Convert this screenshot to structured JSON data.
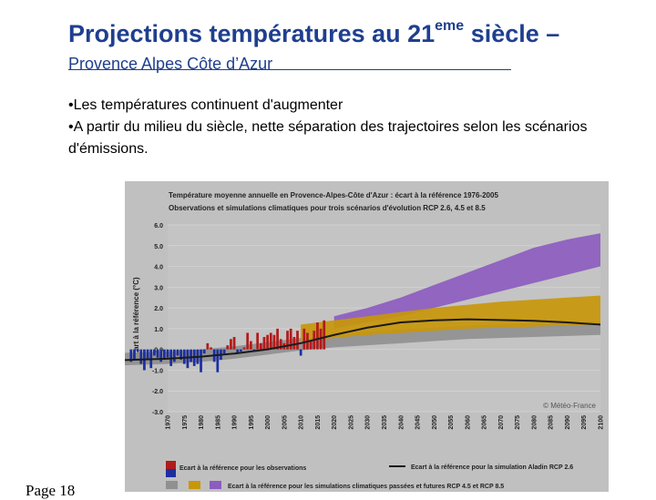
{
  "slide": {
    "title_main": "Projections températures au 21",
    "title_sup": "eme",
    "title_tail": " siècle –",
    "subtitle": "Provence Alpes Côte d’Azur",
    "bullets": [
      "•Les températures continuent d'augmenter",
      "•A partir du milieu du siècle, nette séparation des trajectoires selon les scénarios d'émissions."
    ],
    "page_label": "Page 18"
  },
  "chart_data": {
    "type": "bar+area+line",
    "title": "Température moyenne annuelle en Provence-Alpes-Côte d'Azur : écart à la référence 1976-2005",
    "subtitle": "Observations et simulations climatiques pour trois scénarios d'évolution RCP 2.6, 4.5 et 8.5",
    "ylabel": "Écart à la référence (°C)",
    "ylim": [
      -3,
      6
    ],
    "xlim": [
      1970,
      2100
    ],
    "yticks": [
      "6.0",
      "5.0",
      "4.0",
      "3.0",
      "2.0",
      "1.0",
      "0.0",
      "-1.0",
      "-2.0",
      "-3.0"
    ],
    "xticks": [
      "1970",
      "1975",
      "1980",
      "1985",
      "1990",
      "1995",
      "2000",
      "2005",
      "2010",
      "2015",
      "2020",
      "2025",
      "2030",
      "2035",
      "2040",
      "2045",
      "2050",
      "2055",
      "2060",
      "2065",
      "2070",
      "2075",
      "2080",
      "2085",
      "2090",
      "2095",
      "2100"
    ],
    "credit": "© Météo-France",
    "observations": {
      "years": [
        1959,
        1960,
        1961,
        1962,
        1963,
        1964,
        1965,
        1966,
        1967,
        1968,
        1969,
        1970,
        1971,
        1972,
        1973,
        1974,
        1975,
        1976,
        1977,
        1978,
        1979,
        1980,
        1981,
        1982,
        1983,
        1984,
        1985,
        1986,
        1987,
        1988,
        1989,
        1990,
        1991,
        1992,
        1993,
        1994,
        1995,
        1996,
        1997,
        1998,
        1999,
        2000,
        2001,
        2002,
        2003,
        2004,
        2005,
        2006,
        2007,
        2008,
        2009,
        2010,
        2011,
        2012,
        2013,
        2014,
        2015,
        2016,
        2017
      ],
      "values": [
        -0.6,
        -0.5,
        -0.1,
        -0.7,
        -1.0,
        -0.5,
        -0.9,
        -0.3,
        -0.4,
        -0.6,
        -0.5,
        -0.4,
        -0.8,
        -0.6,
        -0.3,
        -0.5,
        -0.7,
        -0.9,
        -0.6,
        -0.8,
        -0.7,
        -1.1,
        -0.2,
        0.3,
        0.1,
        -0.6,
        -1.1,
        -0.5,
        -0.2,
        0.2,
        0.5,
        0.6,
        -0.2,
        -0.1,
        0.1,
        0.8,
        0.4,
        -0.1,
        0.8,
        0.3,
        0.6,
        0.7,
        0.8,
        0.7,
        1.0,
        0.5,
        0.3,
        0.9,
        1.0,
        0.6,
        0.9,
        -0.3,
        1.0,
        0.8,
        0.4,
        0.9,
        1.3,
        1.0,
        1.4
      ],
      "warm_color": "#b01c1c",
      "cold_color": "#1c2fa0"
    },
    "scenarios": {
      "x": [
        1950,
        1960,
        1970,
        1980,
        1990,
        2000,
        2010,
        2020,
        2030,
        2040,
        2050,
        2060,
        2070,
        2080,
        2090,
        2100
      ],
      "past_low": [
        -0.8,
        -0.75,
        -0.7,
        -0.6,
        -0.45,
        -0.25,
        -0.05,
        0.1,
        0.2,
        0.3,
        0.4,
        0.5,
        0.55,
        0.6,
        0.65,
        0.7
      ],
      "past_high": [
        -0.2,
        -0.15,
        -0.1,
        0.0,
        0.15,
        0.35,
        0.55,
        0.7,
        0.85,
        0.95,
        1.05,
        1.15,
        1.2,
        1.25,
        1.3,
        1.35
      ],
      "rcp45_low": [
        null,
        null,
        null,
        null,
        null,
        null,
        0.4,
        0.55,
        0.7,
        0.8,
        0.9,
        1.0,
        1.05,
        1.1,
        1.15,
        1.2
      ],
      "rcp45_high": [
        null,
        null,
        null,
        null,
        null,
        null,
        1.2,
        1.4,
        1.6,
        1.8,
        2.0,
        2.15,
        2.3,
        2.4,
        2.5,
        2.6
      ],
      "rcp85_low": [
        null,
        null,
        null,
        null,
        null,
        null,
        null,
        1.0,
        1.3,
        1.6,
        2.0,
        2.4,
        2.8,
        3.2,
        3.6,
        4.0
      ],
      "rcp85_high": [
        null,
        null,
        null,
        null,
        null,
        null,
        null,
        1.6,
        2.0,
        2.5,
        3.1,
        3.7,
        4.3,
        4.9,
        5.3,
        5.6
      ],
      "rcp26_line": [
        -0.55,
        -0.5,
        -0.45,
        -0.35,
        -0.2,
        0.0,
        0.3,
        0.7,
        1.05,
        1.3,
        1.4,
        1.45,
        1.42,
        1.38,
        1.3,
        1.2
      ],
      "gray_color": "#909090",
      "orange_color": "#c8960a",
      "violet_color": "#8c5cbf"
    },
    "legend": [
      "Ecart à la référence pour les observations",
      "Ecart à la référence pour la simulation Aladin RCP 2.6",
      "Ecart à la référence pour les simulations climatiques passées et futures RCP 4.5 et RCP 8.5"
    ]
  }
}
